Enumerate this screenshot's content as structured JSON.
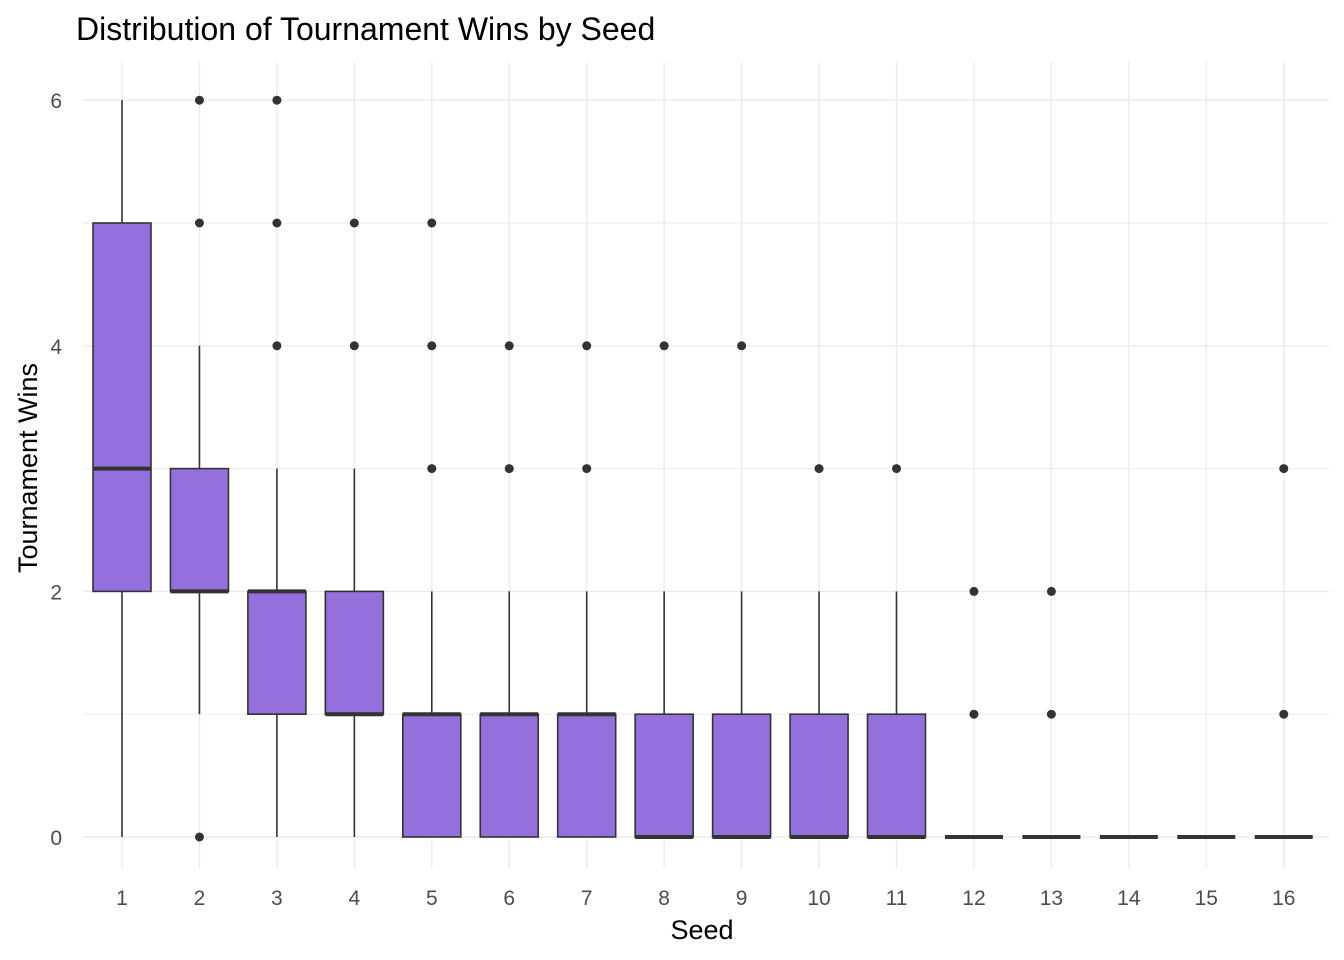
{
  "chart_data": {
    "type": "boxplot",
    "title": "Distribution of Tournament Wins by Seed",
    "xlabel": "Seed",
    "ylabel": "Tournament Wins",
    "categories": [
      "1",
      "2",
      "3",
      "4",
      "5",
      "6",
      "7",
      "8",
      "9",
      "10",
      "11",
      "12",
      "13",
      "14",
      "15",
      "16"
    ],
    "ylim": [
      -0.25,
      6.3
    ],
    "yticks": [
      "0",
      "2",
      "4",
      "6"
    ],
    "box_fill": "#9370DB",
    "line_color": "#333333",
    "grid": true,
    "boxes": [
      {
        "seed": "1",
        "lower_whisker": 0,
        "q1": 2,
        "median": 3,
        "q3": 5,
        "upper_whisker": 6,
        "outliers": []
      },
      {
        "seed": "2",
        "lower_whisker": 1,
        "q1": 2,
        "median": 2,
        "q3": 3,
        "upper_whisker": 4,
        "outliers": [
          0,
          5,
          6
        ]
      },
      {
        "seed": "3",
        "lower_whisker": 0,
        "q1": 1,
        "median": 2,
        "q3": 2,
        "upper_whisker": 3,
        "outliers": [
          4,
          5,
          6
        ]
      },
      {
        "seed": "4",
        "lower_whisker": 0,
        "q1": 1,
        "median": 1,
        "q3": 2,
        "upper_whisker": 3,
        "outliers": [
          4,
          5
        ]
      },
      {
        "seed": "5",
        "lower_whisker": 0,
        "q1": 0,
        "median": 1,
        "q3": 1,
        "upper_whisker": 2,
        "outliers": [
          3,
          4,
          5
        ]
      },
      {
        "seed": "6",
        "lower_whisker": 0,
        "q1": 0,
        "median": 1,
        "q3": 1,
        "upper_whisker": 2,
        "outliers": [
          3,
          4
        ]
      },
      {
        "seed": "7",
        "lower_whisker": 0,
        "q1": 0,
        "median": 1,
        "q3": 1,
        "upper_whisker": 2,
        "outliers": [
          3,
          4
        ]
      },
      {
        "seed": "8",
        "lower_whisker": 0,
        "q1": 0,
        "median": 0,
        "q3": 1,
        "upper_whisker": 2,
        "outliers": [
          4
        ]
      },
      {
        "seed": "9",
        "lower_whisker": 0,
        "q1": 0,
        "median": 0,
        "q3": 1,
        "upper_whisker": 2,
        "outliers": [
          4
        ]
      },
      {
        "seed": "10",
        "lower_whisker": 0,
        "q1": 0,
        "median": 0,
        "q3": 1,
        "upper_whisker": 2,
        "outliers": [
          3
        ]
      },
      {
        "seed": "11",
        "lower_whisker": 0,
        "q1": 0,
        "median": 0,
        "q3": 1,
        "upper_whisker": 2,
        "outliers": [
          3
        ]
      },
      {
        "seed": "12",
        "lower_whisker": 0,
        "q1": 0,
        "median": 0,
        "q3": 0,
        "upper_whisker": 0,
        "outliers": [
          1,
          2
        ]
      },
      {
        "seed": "13",
        "lower_whisker": 0,
        "q1": 0,
        "median": 0,
        "q3": 0,
        "upper_whisker": 0,
        "outliers": [
          1,
          2
        ]
      },
      {
        "seed": "14",
        "lower_whisker": 0,
        "q1": 0,
        "median": 0,
        "q3": 0,
        "upper_whisker": 0,
        "outliers": []
      },
      {
        "seed": "15",
        "lower_whisker": 0,
        "q1": 0,
        "median": 0,
        "q3": 0,
        "upper_whisker": 0,
        "outliers": []
      },
      {
        "seed": "16",
        "lower_whisker": 0,
        "q1": 0,
        "median": 0,
        "q3": 0,
        "upper_whisker": 0,
        "outliers": [
          1,
          3
        ]
      }
    ]
  }
}
